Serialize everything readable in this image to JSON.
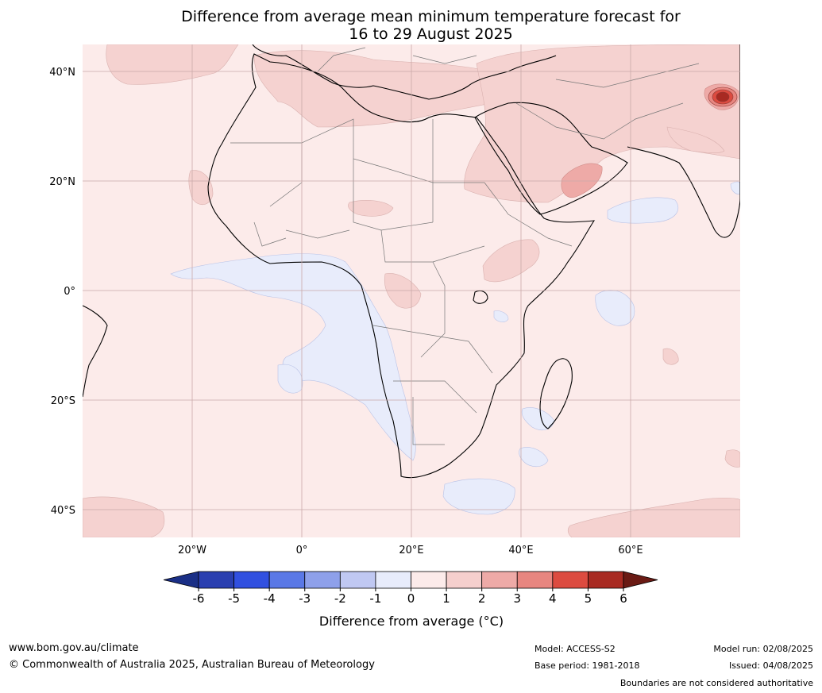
{
  "title": {
    "line1": "Difference from average mean minimum temperature forecast for",
    "line2": "16 to 29 August 2025"
  },
  "map": {
    "lon_range": [
      -40,
      80
    ],
    "lat_range": [
      -45,
      45
    ],
    "lat_ticks": [
      {
        "value": 40,
        "label": "40°N"
      },
      {
        "value": 20,
        "label": "20°N"
      },
      {
        "value": 0,
        "label": "0°"
      },
      {
        "value": -20,
        "label": "20°S"
      },
      {
        "value": -40,
        "label": "40°S"
      }
    ],
    "lon_ticks": [
      {
        "value": -20,
        "label": "20°W"
      },
      {
        "value": 0,
        "label": "0°"
      },
      {
        "value": 20,
        "label": "20°E"
      },
      {
        "value": 40,
        "label": "40°E"
      },
      {
        "value": 60,
        "label": "60°E"
      }
    ],
    "background_color": "#fcebea",
    "gridline_color": "#c9a9a9"
  },
  "colorbar": {
    "title": "Difference from average (°C)",
    "tick_labels": [
      "-6",
      "-5",
      "-4",
      "-3",
      "-2",
      "-1",
      "0",
      "1",
      "2",
      "3",
      "4",
      "5",
      "6"
    ],
    "under_color": "#1a2f86",
    "over_color": "#6a1a14",
    "colors": [
      "#2a3fb0",
      "#3150e0",
      "#5a78e6",
      "#8ea0ea",
      "#c0c8f2",
      "#e8ecfb",
      "#fcebea",
      "#f5cfcd",
      "#eeaaa7",
      "#e88680",
      "#dc4b40",
      "#a82a22"
    ]
  },
  "footer": {
    "url": "www.bom.gov.au/climate",
    "copyright": "© Commonwealth of Australia 2025, Australian Bureau of Meteorology",
    "model": "Model: ACCESS-S2",
    "base_period": "Base period: 1981-2018",
    "model_run": "Model run: 02/08/2025",
    "issued": "Issued: 04/08/2025",
    "disclaimer": "Boundaries are not considered authoritative"
  }
}
